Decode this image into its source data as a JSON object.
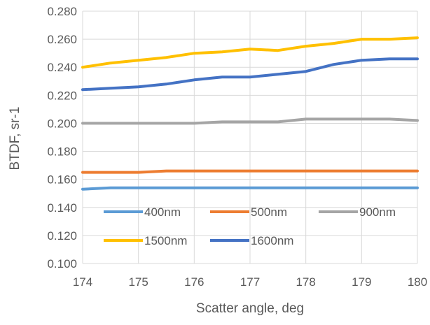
{
  "chart_data": {
    "type": "line",
    "title": "",
    "xlabel": "Scatter angle, deg",
    "ylabel": "BTDF, sr-1",
    "xlim": [
      174,
      180
    ],
    "ylim": [
      0.1,
      0.28
    ],
    "x_ticks": [
      174,
      175,
      176,
      177,
      178,
      179,
      180
    ],
    "y_ticks": [
      0.1,
      0.12,
      0.14,
      0.16,
      0.18,
      0.2,
      0.22,
      0.24,
      0.26,
      0.28
    ],
    "y_tick_labels": [
      "0.100",
      "0.120",
      "0.140",
      "0.160",
      "0.180",
      "0.200",
      "0.220",
      "0.240",
      "0.260",
      "0.280"
    ],
    "x_tick_labels": [
      "174",
      "175",
      "176",
      "177",
      "178",
      "179",
      "180"
    ],
    "grid": {
      "horizontal": true,
      "vertical": true
    },
    "legend_position": "inside-bottom",
    "x": [
      174,
      174.5,
      175,
      175.5,
      176,
      176.5,
      177,
      177.5,
      178,
      178.5,
      179,
      179.5,
      180
    ],
    "series": [
      {
        "name": "400nm",
        "color": "#5B9BD5",
        "values": [
          0.153,
          0.154,
          0.154,
          0.154,
          0.154,
          0.154,
          0.154,
          0.154,
          0.154,
          0.154,
          0.154,
          0.154,
          0.154
        ]
      },
      {
        "name": "500nm",
        "color": "#ED7D31",
        "values": [
          0.165,
          0.165,
          0.165,
          0.166,
          0.166,
          0.166,
          0.166,
          0.166,
          0.166,
          0.166,
          0.166,
          0.166,
          0.166
        ]
      },
      {
        "name": "900nm",
        "color": "#A5A5A5",
        "values": [
          0.2,
          0.2,
          0.2,
          0.2,
          0.2,
          0.201,
          0.201,
          0.201,
          0.203,
          0.203,
          0.203,
          0.203,
          0.202
        ]
      },
      {
        "name": "1500nm",
        "color": "#FFC000",
        "values": [
          0.24,
          0.243,
          0.245,
          0.247,
          0.25,
          0.251,
          0.253,
          0.252,
          0.255,
          0.257,
          0.26,
          0.26,
          0.261
        ]
      },
      {
        "name": "1600nm",
        "color": "#4472C4",
        "values": [
          0.224,
          0.225,
          0.226,
          0.228,
          0.231,
          0.233,
          0.233,
          0.235,
          0.237,
          0.242,
          0.245,
          0.246,
          0.246
        ]
      }
    ]
  }
}
